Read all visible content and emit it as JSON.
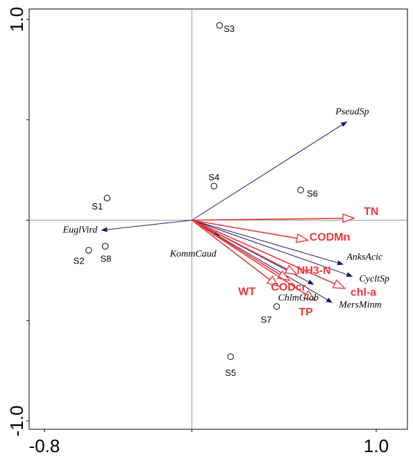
{
  "chart_data": {
    "type": "scatter",
    "xlim": [
      -0.8,
      1.0
    ],
    "ylim": [
      -1.0,
      1.0
    ],
    "x_ticks": [
      -0.8,
      1.0
    ],
    "x_tick_labels": [
      "-0.8",
      "1.0"
    ],
    "y_ticks": [
      1.0,
      -1.0
    ],
    "y_tick_labels": [
      "1.0",
      "-1.0"
    ],
    "grid": false,
    "sites": [
      {
        "label": "S1",
        "x": -0.46,
        "y": 0.11
      },
      {
        "label": "S2",
        "x": -0.56,
        "y": -0.15
      },
      {
        "label": "S8",
        "x": -0.47,
        "y": -0.13
      },
      {
        "label": "S3",
        "x": 0.15,
        "y": 0.97
      },
      {
        "label": "S4",
        "x": 0.12,
        "y": 0.17
      },
      {
        "label": "S6",
        "x": 0.59,
        "y": 0.15
      },
      {
        "label": "S7",
        "x": 0.46,
        "y": -0.43
      },
      {
        "label": "S5",
        "x": 0.21,
        "y": -0.68
      }
    ],
    "species": [
      {
        "label": "PseudSp",
        "x": 0.84,
        "y": 0.49
      },
      {
        "label": "EuglVird",
        "x": -0.49,
        "y": -0.05
      },
      {
        "label": "KommCaud",
        "x": 0.15,
        "y": -0.08
      },
      {
        "label": "AnksAcic",
        "x": 0.82,
        "y": -0.22
      },
      {
        "label": "CycltSp",
        "x": 0.87,
        "y": -0.28
      },
      {
        "label": "MersMinm",
        "x": 0.76,
        "y": -0.41
      },
      {
        "label": "ChlmGlob",
        "x": 0.66,
        "y": -0.32
      }
    ],
    "env": [
      {
        "label": "TN",
        "x": 0.88,
        "y": 0.01
      },
      {
        "label": "CODMn",
        "x": 0.63,
        "y": -0.1
      },
      {
        "label": "NH3-N",
        "x": 0.57,
        "y": -0.27
      },
      {
        "label": "CODcr",
        "x": 0.53,
        "y": -0.3
      },
      {
        "label": "chl-a",
        "x": 0.83,
        "y": -0.34
      },
      {
        "label": "WT",
        "x": 0.47,
        "y": -0.33
      },
      {
        "label": "TP",
        "x": 0.67,
        "y": -0.4
      }
    ],
    "colors": {
      "species": "#1a1a6e",
      "env": "#e8393a",
      "axis": "#999999",
      "frame": "#000000"
    }
  }
}
